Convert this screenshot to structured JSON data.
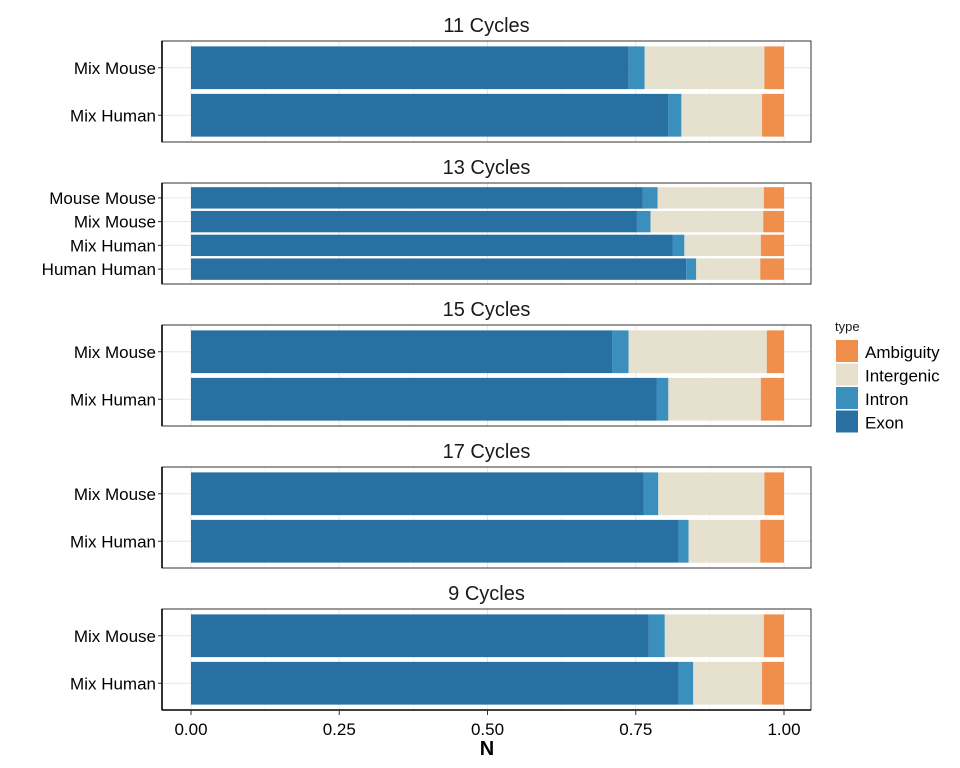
{
  "chart_data": {
    "type": "bar",
    "orientation": "horizontal",
    "stacked": true,
    "xlabel": "N",
    "ylabel": "",
    "xlim": [
      0,
      1
    ],
    "xticks": [
      0,
      0.25,
      0.5,
      0.75,
      1
    ],
    "xtick_labels": [
      "0.00",
      "0.25",
      "0.50",
      "0.75",
      "1.00"
    ],
    "grid": true,
    "legend": {
      "title": "type",
      "position": "right",
      "entries": [
        "Ambiguity",
        "Intergenic",
        "Intron",
        "Exon"
      ]
    },
    "colors": {
      "Exon": "#2770a1",
      "Intron": "#3a8fbd",
      "Intergenic": "#e6e0cf",
      "Ambiguity": "#f08f4c"
    },
    "stack_order": [
      "Exon",
      "Intron",
      "Intergenic",
      "Ambiguity"
    ],
    "facets": [
      {
        "title": "11 Cycles",
        "categories": [
          "Mix Mouse",
          "Mix Human"
        ],
        "series": [
          {
            "name": "Exon",
            "values": [
              0.738,
              0.805
            ]
          },
          {
            "name": "Intron",
            "values": [
              0.027,
              0.022
            ]
          },
          {
            "name": "Intergenic",
            "values": [
              0.202,
              0.136
            ]
          },
          {
            "name": "Ambiguity",
            "values": [
              0.033,
              0.037
            ]
          }
        ]
      },
      {
        "title": "13 Cycles",
        "categories": [
          "Mouse Mouse",
          "Mix Mouse",
          "Mix Human",
          "Human Human"
        ],
        "series": [
          {
            "name": "Exon",
            "values": [
              0.762,
              0.752,
              0.812,
              0.835
            ]
          },
          {
            "name": "Intron",
            "values": [
              0.025,
              0.023,
              0.02,
              0.017
            ]
          },
          {
            "name": "Intergenic",
            "values": [
              0.179,
              0.19,
              0.129,
              0.108
            ]
          },
          {
            "name": "Ambiguity",
            "values": [
              0.034,
              0.035,
              0.039,
              0.04
            ]
          }
        ]
      },
      {
        "title": "15 Cycles",
        "categories": [
          "Mix Mouse",
          "Mix Human"
        ],
        "series": [
          {
            "name": "Exon",
            "values": [
              0.71,
              0.785
            ]
          },
          {
            "name": "Intron",
            "values": [
              0.028,
              0.02
            ]
          },
          {
            "name": "Intergenic",
            "values": [
              0.233,
              0.156
            ]
          },
          {
            "name": "Ambiguity",
            "values": [
              0.029,
              0.039
            ]
          }
        ]
      },
      {
        "title": "17 Cycles",
        "categories": [
          "Mix Mouse",
          "Mix Human"
        ],
        "series": [
          {
            "name": "Exon",
            "values": [
              0.763,
              0.822
            ]
          },
          {
            "name": "Intron",
            "values": [
              0.025,
              0.017
            ]
          },
          {
            "name": "Intergenic",
            "values": [
              0.179,
              0.121
            ]
          },
          {
            "name": "Ambiguity",
            "values": [
              0.033,
              0.04
            ]
          }
        ]
      },
      {
        "title": "9 Cycles",
        "categories": [
          "Mix Mouse",
          "Mix Human"
        ],
        "series": [
          {
            "name": "Exon",
            "values": [
              0.772,
              0.822
            ]
          },
          {
            "name": "Intron",
            "values": [
              0.027,
              0.025
            ]
          },
          {
            "name": "Intergenic",
            "values": [
              0.167,
              0.116
            ]
          },
          {
            "name": "Ambiguity",
            "values": [
              0.034,
              0.037
            ]
          }
        ]
      }
    ]
  }
}
